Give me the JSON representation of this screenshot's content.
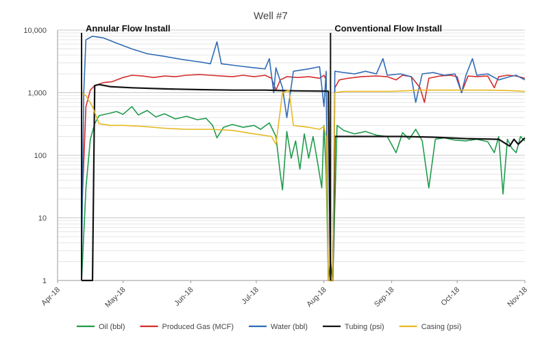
{
  "chart_data": {
    "type": "line",
    "title": "Well #7",
    "xlabel": "",
    "ylabel": "",
    "y_scale": "log",
    "ylim": [
      1,
      10000
    ],
    "y_ticks": [
      "1",
      "10",
      "100",
      "1,000",
      "10,000"
    ],
    "x_ticks": [
      "Apr-18",
      "May-18",
      "Jun-18",
      "Jul-18",
      "Aug-18",
      "Sep-18",
      "Oct-18",
      "Nov-18"
    ],
    "xlim": [
      "2018-04-01",
      "2018-11-01"
    ],
    "grid": true,
    "legend_position": "bottom",
    "annotations": [
      {
        "label": "Annular Flow Install",
        "date": "2018-04-12"
      },
      {
        "label": "Conventional Flow Install",
        "date": "2018-08-04"
      }
    ],
    "series": [
      {
        "name": "Oil (bbl)",
        "color": "#1e9b4b",
        "points": [
          [
            "2018-04-12",
            1
          ],
          [
            "2018-04-14",
            30
          ],
          [
            "2018-04-16",
            180
          ],
          [
            "2018-04-18",
            320
          ],
          [
            "2018-04-20",
            430
          ],
          [
            "2018-04-25",
            470
          ],
          [
            "2018-04-28",
            500
          ],
          [
            "2018-05-01",
            450
          ],
          [
            "2018-05-05",
            600
          ],
          [
            "2018-05-08",
            440
          ],
          [
            "2018-05-12",
            520
          ],
          [
            "2018-05-16",
            410
          ],
          [
            "2018-05-20",
            460
          ],
          [
            "2018-05-25",
            380
          ],
          [
            "2018-05-30",
            420
          ],
          [
            "2018-06-04",
            370
          ],
          [
            "2018-06-08",
            390
          ],
          [
            "2018-06-11",
            300
          ],
          [
            "2018-06-13",
            190
          ],
          [
            "2018-06-16",
            280
          ],
          [
            "2018-06-20",
            310
          ],
          [
            "2018-06-25",
            280
          ],
          [
            "2018-06-30",
            300
          ],
          [
            "2018-07-03",
            260
          ],
          [
            "2018-07-07",
            330
          ],
          [
            "2018-07-10",
            200
          ],
          [
            "2018-07-12",
            50
          ],
          [
            "2018-07-13",
            28
          ],
          [
            "2018-07-15",
            240
          ],
          [
            "2018-07-17",
            90
          ],
          [
            "2018-07-19",
            170
          ],
          [
            "2018-07-21",
            60
          ],
          [
            "2018-07-23",
            220
          ],
          [
            "2018-07-25",
            90
          ],
          [
            "2018-07-27",
            200
          ],
          [
            "2018-07-29",
            80
          ],
          [
            "2018-07-31",
            30
          ],
          [
            "2018-08-01",
            300
          ],
          [
            "2018-08-02",
            50
          ],
          [
            "2018-08-03",
            1
          ],
          [
            "2018-08-04",
            2
          ],
          [
            "2018-08-05",
            1
          ],
          [
            "2018-08-07",
            300
          ],
          [
            "2018-08-10",
            250
          ],
          [
            "2018-08-15",
            220
          ],
          [
            "2018-08-20",
            240
          ],
          [
            "2018-08-25",
            210
          ],
          [
            "2018-08-30",
            200
          ],
          [
            "2018-09-03",
            110
          ],
          [
            "2018-09-06",
            230
          ],
          [
            "2018-09-09",
            180
          ],
          [
            "2018-09-12",
            260
          ],
          [
            "2018-09-15",
            170
          ],
          [
            "2018-09-18",
            30
          ],
          [
            "2018-09-21",
            180
          ],
          [
            "2018-09-25",
            190
          ],
          [
            "2018-09-30",
            175
          ],
          [
            "2018-10-05",
            170
          ],
          [
            "2018-10-10",
            180
          ],
          [
            "2018-10-15",
            165
          ],
          [
            "2018-10-18",
            110
          ],
          [
            "2018-10-20",
            200
          ],
          [
            "2018-10-22",
            24
          ],
          [
            "2018-10-24",
            180
          ],
          [
            "2018-10-26",
            130
          ],
          [
            "2018-10-28",
            110
          ],
          [
            "2018-10-30",
            200
          ],
          [
            "2018-11-01",
            170
          ]
        ]
      },
      {
        "name": "Produced Gas (MCF)",
        "color": "#d42a2a",
        "points": [
          [
            "2018-04-12",
            10
          ],
          [
            "2018-04-14",
            600
          ],
          [
            "2018-04-16",
            1100
          ],
          [
            "2018-04-18",
            1300
          ],
          [
            "2018-04-22",
            1450
          ],
          [
            "2018-04-26",
            1500
          ],
          [
            "2018-05-01",
            1750
          ],
          [
            "2018-05-05",
            1900
          ],
          [
            "2018-05-10",
            1850
          ],
          [
            "2018-05-15",
            1750
          ],
          [
            "2018-05-20",
            1850
          ],
          [
            "2018-05-25",
            1800
          ],
          [
            "2018-05-30",
            1900
          ],
          [
            "2018-06-05",
            1950
          ],
          [
            "2018-06-10",
            1900
          ],
          [
            "2018-06-15",
            1850
          ],
          [
            "2018-06-20",
            1800
          ],
          [
            "2018-06-25",
            1900
          ],
          [
            "2018-06-30",
            1800
          ],
          [
            "2018-07-05",
            1900
          ],
          [
            "2018-07-08",
            1700
          ],
          [
            "2018-07-10",
            1100
          ],
          [
            "2018-07-12",
            1600
          ],
          [
            "2018-07-15",
            1800
          ],
          [
            "2018-07-20",
            1750
          ],
          [
            "2018-07-25",
            1800
          ],
          [
            "2018-07-30",
            1700
          ],
          [
            "2018-08-01",
            1900
          ],
          [
            "2018-08-02",
            1600
          ],
          [
            "2018-08-03",
            1
          ],
          [
            "2018-08-05",
            1
          ],
          [
            "2018-08-06",
            1200
          ],
          [
            "2018-08-08",
            1600
          ],
          [
            "2018-08-12",
            1700
          ],
          [
            "2018-08-18",
            1800
          ],
          [
            "2018-08-25",
            1850
          ],
          [
            "2018-08-30",
            1800
          ],
          [
            "2018-09-03",
            1600
          ],
          [
            "2018-09-06",
            1900
          ],
          [
            "2018-09-10",
            1800
          ],
          [
            "2018-09-14",
            1200
          ],
          [
            "2018-09-16",
            700
          ],
          [
            "2018-09-18",
            1700
          ],
          [
            "2018-09-23",
            1850
          ],
          [
            "2018-09-28",
            1900
          ],
          [
            "2018-10-01",
            1800
          ],
          [
            "2018-10-03",
            1000
          ],
          [
            "2018-10-06",
            1850
          ],
          [
            "2018-10-10",
            1800
          ],
          [
            "2018-10-15",
            1850
          ],
          [
            "2018-10-18",
            1200
          ],
          [
            "2018-10-20",
            1800
          ],
          [
            "2018-10-24",
            1900
          ],
          [
            "2018-10-28",
            1850
          ],
          [
            "2018-11-01",
            1700
          ]
        ]
      },
      {
        "name": "Water (bbl)",
        "color": "#2e6bb5",
        "points": [
          [
            "2018-04-12",
            2
          ],
          [
            "2018-04-13",
            1000
          ],
          [
            "2018-04-14",
            7000
          ],
          [
            "2018-04-17",
            8000
          ],
          [
            "2018-04-22",
            7500
          ],
          [
            "2018-04-28",
            6200
          ],
          [
            "2018-05-05",
            5000
          ],
          [
            "2018-05-12",
            4200
          ],
          [
            "2018-05-20",
            3800
          ],
          [
            "2018-05-28",
            3400
          ],
          [
            "2018-06-05",
            3100
          ],
          [
            "2018-06-10",
            2900
          ],
          [
            "2018-06-13",
            6500
          ],
          [
            "2018-06-15",
            2900
          ],
          [
            "2018-06-22",
            2700
          ],
          [
            "2018-06-30",
            2500
          ],
          [
            "2018-07-05",
            2400
          ],
          [
            "2018-07-07",
            3500
          ],
          [
            "2018-07-09",
            1000
          ],
          [
            "2018-07-10",
            2500
          ],
          [
            "2018-07-13",
            1200
          ],
          [
            "2018-07-15",
            400
          ],
          [
            "2018-07-18",
            2200
          ],
          [
            "2018-07-25",
            2400
          ],
          [
            "2018-07-30",
            2600
          ],
          [
            "2018-08-01",
            600
          ],
          [
            "2018-08-02",
            2200
          ],
          [
            "2018-08-03",
            1
          ],
          [
            "2018-08-05",
            1
          ],
          [
            "2018-08-06",
            2200
          ],
          [
            "2018-08-10",
            2100
          ],
          [
            "2018-08-15",
            2000
          ],
          [
            "2018-08-20",
            2200
          ],
          [
            "2018-08-25",
            2000
          ],
          [
            "2018-08-28",
            3500
          ],
          [
            "2018-08-30",
            1900
          ],
          [
            "2018-09-05",
            2000
          ],
          [
            "2018-09-10",
            1800
          ],
          [
            "2018-09-12",
            700
          ],
          [
            "2018-09-15",
            2000
          ],
          [
            "2018-09-20",
            2100
          ],
          [
            "2018-09-25",
            1900
          ],
          [
            "2018-09-30",
            2000
          ],
          [
            "2018-10-03",
            1000
          ],
          [
            "2018-10-05",
            1900
          ],
          [
            "2018-10-08",
            3500
          ],
          [
            "2018-10-10",
            1900
          ],
          [
            "2018-10-15",
            2000
          ],
          [
            "2018-10-20",
            1600
          ],
          [
            "2018-10-25",
            1800
          ],
          [
            "2018-10-28",
            1900
          ],
          [
            "2018-11-01",
            1600
          ]
        ]
      },
      {
        "name": "Tubing (psi)",
        "color": "#111111",
        "points": [
          [
            "2018-04-12",
            1
          ],
          [
            "2018-04-17",
            1
          ],
          [
            "2018-04-18",
            1300
          ],
          [
            "2018-04-20",
            1350
          ],
          [
            "2018-04-25",
            1250
          ],
          [
            "2018-05-05",
            1200
          ],
          [
            "2018-05-20",
            1150
          ],
          [
            "2018-06-05",
            1120
          ],
          [
            "2018-06-20",
            1100
          ],
          [
            "2018-07-05",
            1100
          ],
          [
            "2018-07-12",
            1080
          ],
          [
            "2018-07-20",
            1070
          ],
          [
            "2018-08-01",
            1060
          ],
          [
            "2018-08-03",
            1060
          ],
          [
            "2018-08-04",
            1
          ],
          [
            "2018-08-05",
            1
          ],
          [
            "2018-08-06",
            200
          ],
          [
            "2018-08-20",
            200
          ],
          [
            "2018-09-05",
            200
          ],
          [
            "2018-09-20",
            195
          ],
          [
            "2018-10-05",
            185
          ],
          [
            "2018-10-20",
            180
          ],
          [
            "2018-10-25",
            140
          ],
          [
            "2018-10-27",
            180
          ],
          [
            "2018-10-29",
            150
          ],
          [
            "2018-11-01",
            190
          ]
        ]
      },
      {
        "name": "Casing (psi)",
        "color": "#e6b820",
        "points": [
          [
            "2018-04-12",
            1000
          ],
          [
            "2018-04-14",
            900
          ],
          [
            "2018-04-17",
            600
          ],
          [
            "2018-04-20",
            320
          ],
          [
            "2018-04-25",
            300
          ],
          [
            "2018-05-01",
            300
          ],
          [
            "2018-05-10",
            290
          ],
          [
            "2018-05-20",
            270
          ],
          [
            "2018-05-30",
            260
          ],
          [
            "2018-06-10",
            260
          ],
          [
            "2018-06-20",
            250
          ],
          [
            "2018-06-30",
            220
          ],
          [
            "2018-07-08",
            200
          ],
          [
            "2018-07-10",
            150
          ],
          [
            "2018-07-13",
            1000
          ],
          [
            "2018-07-16",
            1100
          ],
          [
            "2018-07-18",
            300
          ],
          [
            "2018-07-25",
            280
          ],
          [
            "2018-07-30",
            260
          ],
          [
            "2018-08-01",
            290
          ],
          [
            "2018-08-02",
            200
          ],
          [
            "2018-08-03",
            1
          ],
          [
            "2018-08-05",
            1
          ],
          [
            "2018-08-06",
            1000
          ],
          [
            "2018-08-10",
            1050
          ],
          [
            "2018-08-20",
            1050
          ],
          [
            "2018-09-01",
            1050
          ],
          [
            "2018-09-15",
            1100
          ],
          [
            "2018-10-01",
            1100
          ],
          [
            "2018-10-15",
            1100
          ],
          [
            "2018-10-25",
            1080
          ],
          [
            "2018-11-01",
            1050
          ]
        ]
      }
    ]
  }
}
